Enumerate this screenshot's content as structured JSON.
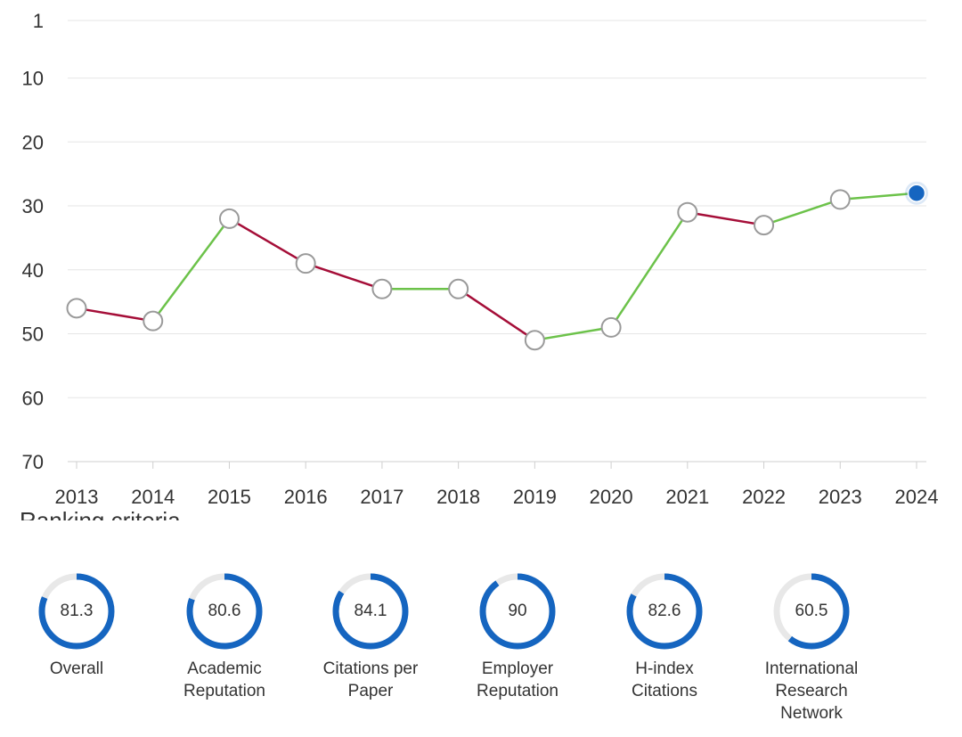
{
  "chart_data": {
    "type": "line",
    "x": [
      "2013",
      "2014",
      "2015",
      "2016",
      "2017",
      "2018",
      "2019",
      "2020",
      "2021",
      "2022",
      "2023",
      "2024"
    ],
    "y": [
      46,
      48,
      32,
      39,
      43,
      43,
      51,
      49,
      31,
      33,
      29,
      28
    ],
    "yticks": [
      "1",
      "10",
      "20",
      "30",
      "40",
      "50",
      "60",
      "70"
    ],
    "ylim": [
      1,
      70
    ],
    "y_inverted": true,
    "grid": true,
    "colors": {
      "improved": "#6cc24a",
      "declined": "#a50e38",
      "marker_fill": "#ffffff",
      "marker_stroke": "#9a9a9a",
      "current_marker": "#1565c0"
    }
  },
  "criteria": {
    "title": "Ranking criteria",
    "accent": "#1565c0",
    "track": "#e8e8e8",
    "items": [
      {
        "label": "Overall",
        "value": "81.3"
      },
      {
        "label": "Academic\nReputation",
        "value": "80.6"
      },
      {
        "label": "Citations per\nPaper",
        "value": "84.1"
      },
      {
        "label": "Employer\nReputation",
        "value": "90"
      },
      {
        "label": "H-index\nCitations",
        "value": "82.6"
      },
      {
        "label": "International\nResearch\nNetwork",
        "value": "60.5"
      }
    ]
  }
}
